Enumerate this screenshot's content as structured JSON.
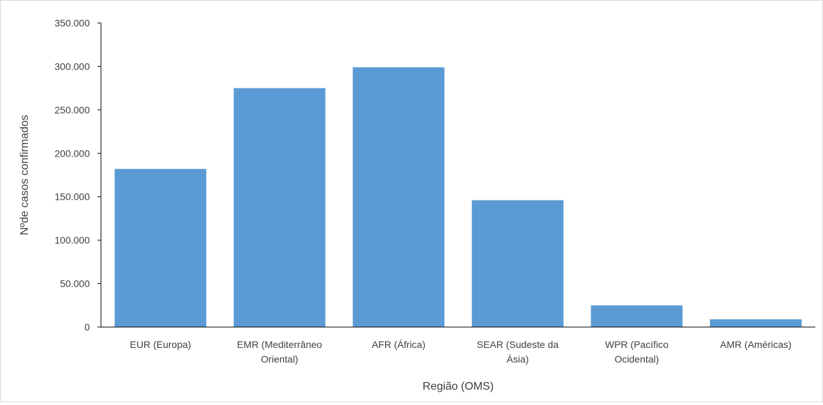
{
  "chart_data": {
    "type": "bar",
    "title": "",
    "xlabel": "Região (OMS)",
    "ylabel": "Nºde casos confirmados",
    "categories": [
      "EUR (Europa)",
      "EMR (Mediterrâneo Oriental)",
      "AFR (África)",
      "SEAR (Sudeste da Ásia)",
      "WPR (Pacífico Ocidental)",
      "AMR (Américas)"
    ],
    "category_lines": [
      [
        "EUR (Europa)"
      ],
      [
        "EMR (Mediterrâneo",
        "Oriental)"
      ],
      [
        "AFR (África)"
      ],
      [
        "SEAR (Sudeste da",
        "Ásia)"
      ],
      [
        "WPR (Pacífico",
        "Ocidental)"
      ],
      [
        "AMR (Américas)"
      ]
    ],
    "values": [
      182000,
      275000,
      299000,
      146000,
      25000,
      9000
    ],
    "ylim": [
      0,
      350000
    ],
    "yticks": [
      0,
      50000,
      100000,
      150000,
      200000,
      250000,
      300000,
      350000
    ],
    "ytick_labels": [
      "0",
      "50.000",
      "100.000",
      "150.000",
      "200.000",
      "250.000",
      "300.000",
      "350.000"
    ],
    "grid": false,
    "legend": "none",
    "bar_color": "#5b9bd5",
    "axis_color": "#000000"
  }
}
